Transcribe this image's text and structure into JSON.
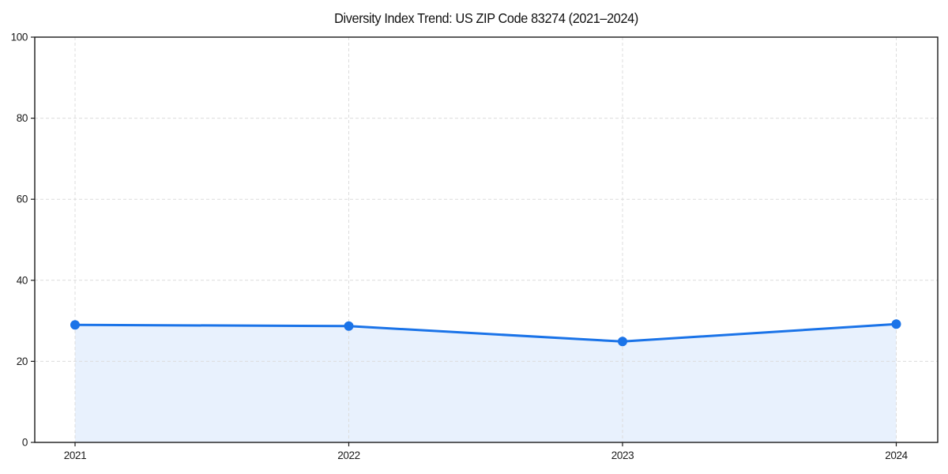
{
  "chart_data": {
    "type": "line",
    "title": "Diversity Index Trend: US ZIP Code 83274 (2021–2024)",
    "categories": [
      "2021",
      "2022",
      "2023",
      "2024"
    ],
    "series": [
      {
        "name": "Diversity Index",
        "values": [
          29.0,
          28.7,
          24.9,
          29.2
        ]
      }
    ],
    "xlabel": "",
    "ylabel": "",
    "ylim": [
      0,
      100
    ],
    "yticks": [
      0,
      20,
      40,
      60,
      80,
      100
    ],
    "grid": "dashed-both-axes",
    "legend": "none",
    "marker": "circle",
    "area_fill": true,
    "colors": {
      "line": "#1a73e8",
      "marker": "#1a73e8",
      "area_fill": "#e8f0fd",
      "grid": "#dcdcdc",
      "axis": "#1a1a1a",
      "tick_text": "#1a1a1a",
      "title_text": "#111111",
      "background": "#ffffff"
    }
  }
}
